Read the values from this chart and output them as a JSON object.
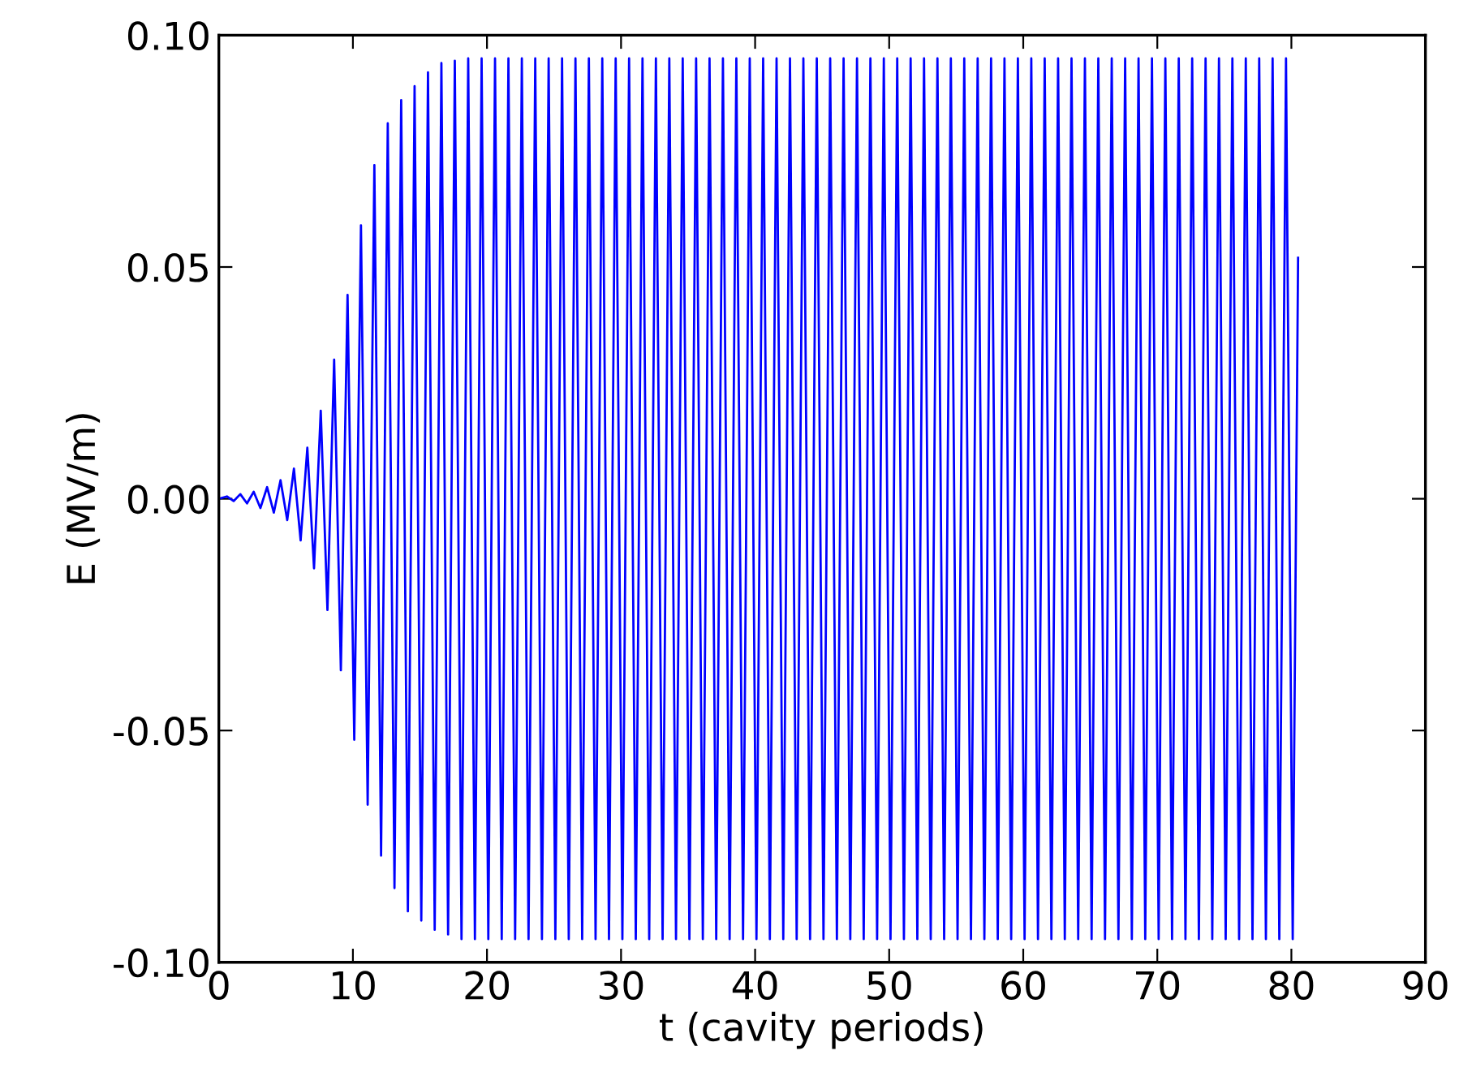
{
  "chart_data": {
    "type": "line",
    "xlabel": "t (cavity periods)",
    "ylabel": "E (MV/m)",
    "xlim": [
      0,
      90
    ],
    "xticks": [
      0,
      10,
      20,
      30,
      40,
      50,
      60,
      70,
      80,
      90
    ],
    "ylim": [
      -0.1,
      0.1
    ],
    "yticks": [
      {
        "value": -0.1,
        "label": "-0.10"
      },
      {
        "value": -0.05,
        "label": "-0.05"
      },
      {
        "value": 0,
        "label": "0.00"
      },
      {
        "value": 0.05,
        "label": "0.05"
      },
      {
        "value": 0.1,
        "label": "0.10"
      }
    ],
    "marker": "none",
    "line_style": "solid",
    "series": [
      {
        "color": "#0000ff",
        "x": [
          0,
          0.6,
          1.1,
          1.6,
          2.1,
          2.6,
          3.1,
          3.6,
          4.1,
          4.6,
          5.1,
          5.6,
          6.1,
          6.6,
          7.1,
          7.6,
          8.1,
          8.6,
          9.1,
          9.6,
          10.1,
          10.6,
          11.1,
          11.6,
          12.1,
          12.6,
          13.1,
          13.6,
          14.1,
          14.6,
          15.1,
          15.6,
          16.1,
          16.6,
          17.1,
          17.6,
          18.1,
          18.6,
          19.1,
          19.6,
          20.1,
          20.6,
          21.1,
          21.6,
          22.1,
          22.6,
          23.1,
          23.6,
          24.1,
          24.6,
          25.1,
          25.6,
          26.1,
          26.6,
          27.1,
          27.6,
          28.1,
          28.6,
          29.1,
          29.6,
          30.1,
          30.6,
          31.1,
          31.6,
          32.1,
          32.6,
          33.1,
          33.6,
          34.1,
          34.6,
          35.1,
          35.6,
          36.1,
          36.6,
          37.1,
          37.6,
          38.1,
          38.6,
          39.1,
          39.6,
          40.1,
          40.6,
          41.1,
          41.6,
          42.1,
          42.6,
          43.1,
          43.6,
          44.1,
          44.6,
          45.1,
          45.6,
          46.1,
          46.6,
          47.1,
          47.6,
          48.1,
          48.6,
          49.1,
          49.6,
          50.1,
          50.6,
          51.1,
          51.6,
          52.1,
          52.6,
          53.1,
          53.6,
          54.1,
          54.6,
          55.1,
          55.6,
          56.1,
          56.6,
          57.1,
          57.6,
          58.1,
          58.6,
          59.1,
          59.6,
          60.1,
          60.6,
          61.1,
          61.6,
          62.1,
          62.6,
          63.1,
          63.6,
          64.1,
          64.6,
          65.1,
          65.6,
          66.1,
          66.6,
          67.1,
          67.6,
          68.1,
          68.6,
          69.1,
          69.6,
          70.1,
          70.6,
          71.1,
          71.6,
          72.1,
          72.6,
          73.1,
          73.6,
          74.1,
          74.6,
          75.1,
          75.6,
          76.1,
          76.6,
          77.1,
          77.6,
          78.1,
          78.6,
          79.1,
          79.6,
          80.1,
          80.5
        ],
        "values": [
          0,
          0.0005,
          -0.0005,
          0.001,
          -0.001,
          0.0015,
          -0.002,
          0.0025,
          -0.003,
          0.004,
          -0.0046,
          0.0065,
          -0.009,
          0.011,
          -0.015,
          0.019,
          -0.024,
          0.03,
          -0.037,
          0.044,
          -0.052,
          0.059,
          -0.066,
          0.072,
          -0.077,
          0.081,
          -0.084,
          0.086,
          -0.089,
          0.089,
          -0.091,
          0.092,
          -0.093,
          0.094,
          -0.094,
          0.0945,
          -0.095,
          0.095,
          -0.095,
          0.095,
          -0.095,
          0.095,
          -0.095,
          0.095,
          -0.095,
          0.095,
          -0.095,
          0.095,
          -0.095,
          0.095,
          -0.095,
          0.095,
          -0.095,
          0.095,
          -0.095,
          0.095,
          -0.095,
          0.095,
          -0.095,
          0.095,
          -0.095,
          0.095,
          -0.095,
          0.095,
          -0.095,
          0.095,
          -0.095,
          0.095,
          -0.095,
          0.095,
          -0.095,
          0.095,
          -0.095,
          0.095,
          -0.095,
          0.095,
          -0.095,
          0.095,
          -0.095,
          0.095,
          -0.095,
          0.095,
          -0.095,
          0.095,
          -0.095,
          0.095,
          -0.095,
          0.095,
          -0.095,
          0.095,
          -0.095,
          0.095,
          -0.095,
          0.095,
          -0.095,
          0.095,
          -0.095,
          0.095,
          -0.095,
          0.095,
          -0.095,
          0.095,
          -0.095,
          0.095,
          -0.095,
          0.095,
          -0.095,
          0.095,
          -0.095,
          0.095,
          -0.095,
          0.095,
          -0.095,
          0.095,
          -0.095,
          0.095,
          -0.095,
          0.095,
          -0.095,
          0.095,
          -0.095,
          0.095,
          -0.095,
          0.095,
          -0.095,
          0.095,
          -0.095,
          0.095,
          -0.095,
          0.095,
          -0.095,
          0.095,
          -0.095,
          0.095,
          -0.095,
          0.095,
          -0.095,
          0.095,
          -0.095,
          0.095,
          -0.095,
          0.095,
          -0.095,
          0.095,
          -0.095,
          0.095,
          -0.095,
          0.095,
          -0.095,
          0.095,
          -0.095,
          0.095,
          -0.095,
          0.095,
          -0.095,
          0.095,
          -0.095,
          0.095,
          -0.095,
          0.095,
          -0.095,
          0.052
        ]
      }
    ]
  }
}
